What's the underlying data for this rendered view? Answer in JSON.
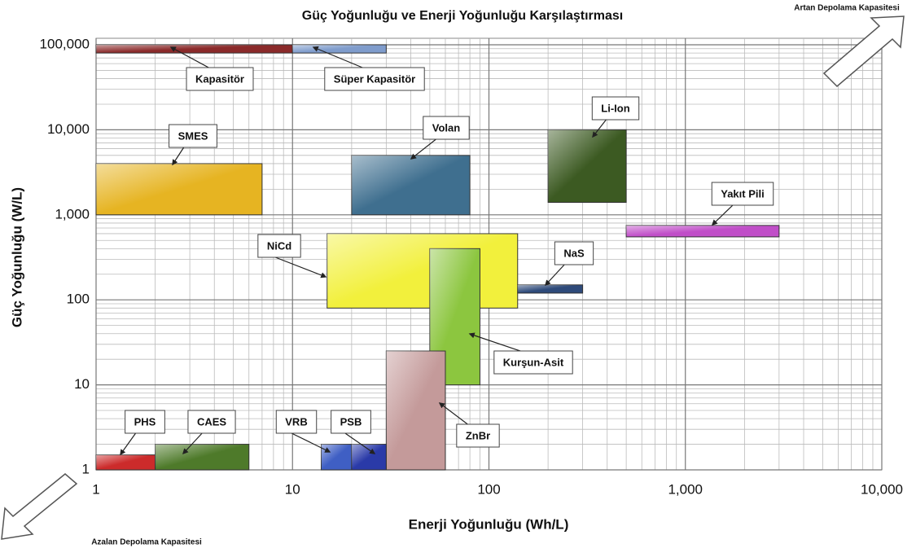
{
  "chart_data": {
    "type": "range",
    "title": "Güç Yoğunluğu ve Enerji Yoğunluğu Karşılaştırması",
    "xlabel": "Enerji Yoğunluğu (Wh/L)",
    "ylabel": "Güç Yoğunluğu (W/L)",
    "annotations": [
      "Artan Depolama Kapasitesi",
      "Azalan Depolama Kapasitesi"
    ],
    "xscale": "log",
    "yscale": "log",
    "grid": true,
    "xlim": [
      1,
      10000
    ],
    "xticks": [
      1,
      10,
      100,
      {
        "value": 1000,
        "label": "1,000"
      },
      {
        "value": 10000,
        "label": "10,000"
      }
    ],
    "ylim": [
      1,
      100000
    ],
    "yticks": [
      1,
      10,
      100,
      {
        "value": 1000,
        "label": "1,000"
      },
      {
        "value": 10000,
        "label": "10,000"
      },
      {
        "value": 100000,
        "label": "100,000"
      }
    ],
    "series": [
      {
        "name": "Kapasitör",
        "color": "#8b2a2a",
        "x": [
          1,
          10
        ],
        "y": [
          80000,
          100000
        ]
      },
      {
        "name": "Süper Kapasitör",
        "color": "#7f9ccc",
        "x": [
          10,
          30
        ],
        "y": [
          80000,
          100000
        ]
      },
      {
        "name": "SMES",
        "color": "#e6b422",
        "x": [
          1,
          7
        ],
        "y": [
          1000,
          4000
        ]
      },
      {
        "name": "Volan",
        "color": "#3f6f8f",
        "x": [
          20,
          80
        ],
        "y": [
          1000,
          5000
        ]
      },
      {
        "name": "Li-Ion",
        "color": "#3c5a22",
        "x": [
          200,
          500
        ],
        "y": [
          1400,
          10000
        ]
      },
      {
        "name": "Yakıt Pili",
        "color": "#c04ec8",
        "x": [
          500,
          3000
        ],
        "y": [
          550,
          750
        ]
      },
      {
        "name": "NiCd",
        "color": "#f2f03c",
        "x": [
          15,
          140
        ],
        "y": [
          80,
          600
        ]
      },
      {
        "name": "NaS",
        "color": "#2e4a7a",
        "x": [
          140,
          300
        ],
        "y": [
          120,
          150
        ]
      },
      {
        "name": "Kurşun-Asit",
        "color": "#8cc63f",
        "x": [
          50,
          90
        ],
        "y": [
          10,
          400
        ]
      },
      {
        "name": "ZnBr",
        "color": "#c49a9a",
        "x": [
          30,
          60
        ],
        "y": [
          1,
          25
        ]
      },
      {
        "name": "PHS",
        "color": "#cc2b2b",
        "x": [
          1,
          2
        ],
        "y": [
          1,
          1.5
        ]
      },
      {
        "name": "CAES",
        "color": "#4e7a2a",
        "x": [
          2,
          6
        ],
        "y": [
          1,
          2
        ]
      },
      {
        "name": "VRB",
        "color": "#3f5fc4",
        "x": [
          14,
          20
        ],
        "y": [
          1,
          2
        ]
      },
      {
        "name": "PSB",
        "color": "#2a3aa8",
        "x": [
          20,
          30
        ],
        "y": [
          1,
          2
        ]
      }
    ]
  }
}
